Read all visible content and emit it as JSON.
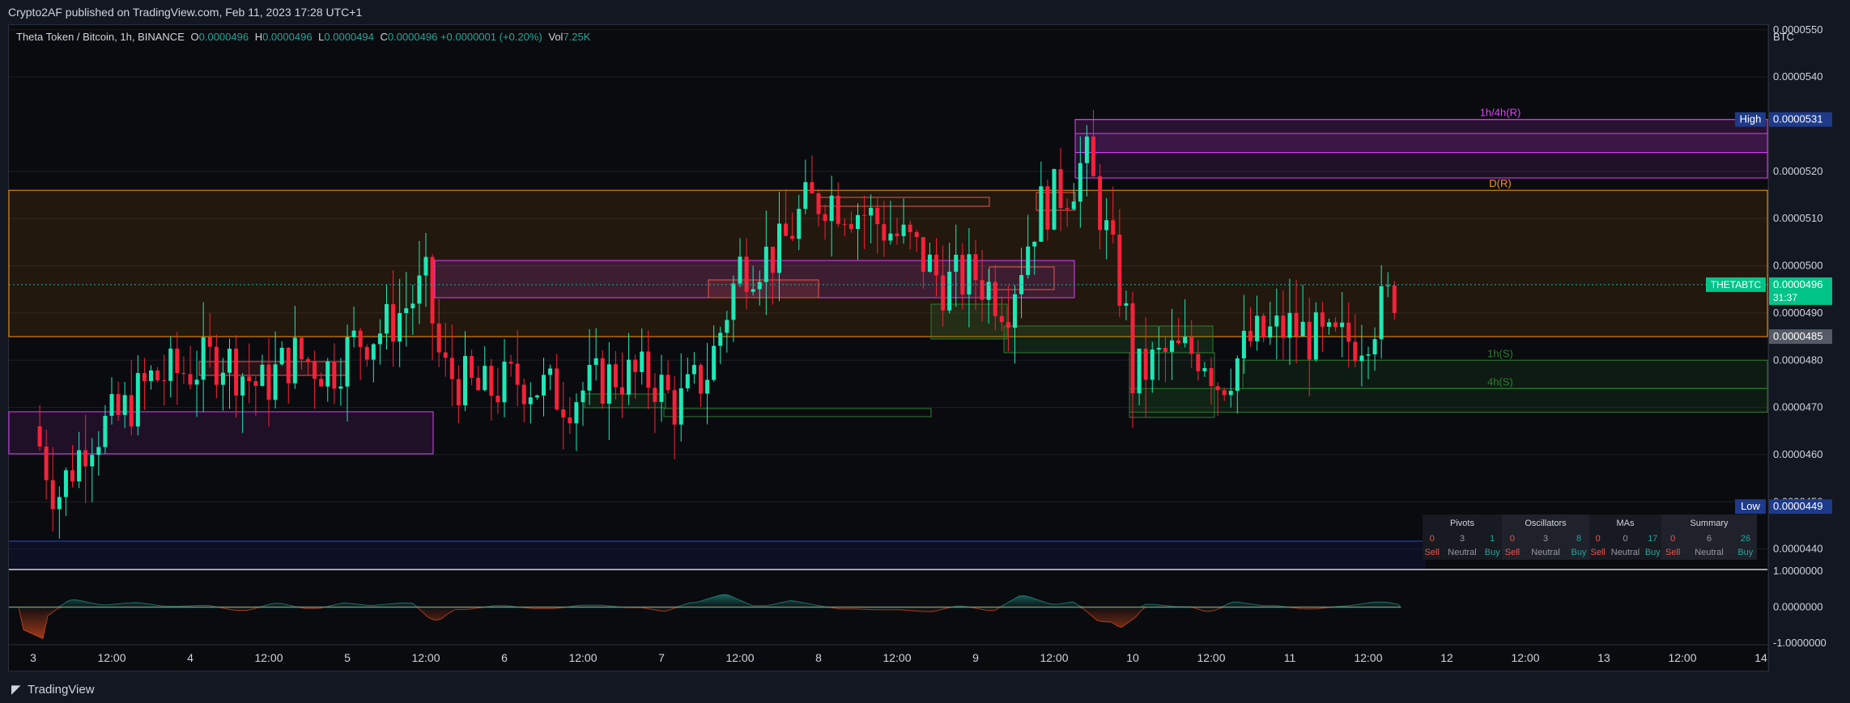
{
  "header": {
    "published": "Crypto2AF published on TradingView.com, Feb 11, 2023 17:28 UTC+1"
  },
  "legend": {
    "symbol": "Theta Token / Bitcoin, 1h, BINANCE",
    "o_label": "O",
    "o_value": "0.0000496",
    "h_label": "H",
    "h_value": "0.0000496",
    "l_label": "L",
    "l_value": "0.0000494",
    "c_label": "C",
    "c_value": "0.0000496",
    "change": "+0.0000001 (+0.20%)",
    "vol_label": "Vol",
    "vol_value": "7.25K"
  },
  "footer": {
    "brand": "TradingView"
  },
  "colors": {
    "up": "#26a69a",
    "down": "#ef5350",
    "bull_body": "#1de9b6",
    "bear_body": "#f7213a",
    "d_zone": "#ff9800",
    "resistance": "#e040fb",
    "support": "#2e7d32"
  },
  "chart_data": {
    "type": "candlestick",
    "currency": "BTC",
    "timeframe": "1h",
    "y_ticks": [
      "0.0000540",
      "0.0000520",
      "0.0000510",
      "0.0000500",
      "0.0000490",
      "0.0000480",
      "0.0000470",
      "0.0000460",
      "0.0000440"
    ],
    "y_ticks_partial": [
      "0.0000550",
      "0.0000450"
    ],
    "ylim": [
      4.36e-05,
      5.51e-05
    ],
    "x_ticks": [
      "3",
      "12:00",
      "4",
      "12:00",
      "5",
      "12:00",
      "6",
      "12:00",
      "7",
      "12:00",
      "8",
      "12:00",
      "9",
      "12:00",
      "10",
      "12:00",
      "11",
      "12:00",
      "12",
      "12:00",
      "13",
      "12:00",
      "14"
    ],
    "last_price": {
      "label": "THETABTC",
      "value": "0.0000496",
      "countdown": "31:37",
      "price": 4.96e-05
    },
    "high_marker": {
      "label": "High",
      "value": "0.0000531",
      "price": 5.31e-05
    },
    "low_marker": {
      "label": "Low",
      "value": "0.0000449",
      "price": 4.49e-05
    },
    "level_marker": {
      "value": "0.0000485",
      "price": 4.85e-05
    },
    "zones": [
      {
        "label": "1h/4h(R)",
        "top": 5.31e-05,
        "bottom": 5.24e-05,
        "color": "#e040fb"
      },
      {
        "label": "D(R)",
        "top": 5.16e-05,
        "bottom": 4.85e-05,
        "color": "#ff9800"
      },
      {
        "label": "1h(S)",
        "top": 4.8e-05,
        "bottom": 4.74e-05,
        "color": "#2e7d32"
      },
      {
        "label": "4h(S)",
        "top": 4.74e-05,
        "bottom": 4.69e-05,
        "color": "#2e7d32"
      }
    ],
    "candle_path": [
      [
        3.0,
        4.66e-05
      ],
      [
        3.15,
        4.51e-05
      ],
      [
        3.35,
        4.64e-05
      ],
      [
        3.55,
        4.68e-05
      ],
      [
        3.75,
        4.76e-05
      ],
      [
        4.0,
        4.78e-05
      ],
      [
        4.2,
        4.81e-05
      ],
      [
        4.45,
        4.74e-05
      ],
      [
        4.65,
        4.81e-05
      ],
      [
        4.9,
        4.78e-05
      ],
      [
        5.05,
        4.84e-05
      ],
      [
        5.25,
        4.87e-05
      ],
      [
        5.5,
        4.96e-05
      ],
      [
        5.6,
        4.78e-05
      ],
      [
        5.85,
        4.73e-05
      ],
      [
        6.1,
        4.76e-05
      ],
      [
        6.4,
        4.72e-05
      ],
      [
        6.7,
        4.77e-05
      ],
      [
        6.95,
        4.76e-05
      ],
      [
        7.1,
        4.7e-05
      ],
      [
        7.3,
        4.78e-05
      ],
      [
        7.5,
        5e-05
      ],
      [
        7.75,
        5.03e-05
      ],
      [
        7.9,
        5.12e-05
      ],
      [
        8.05,
        5.15e-05
      ],
      [
        8.3,
        5.11e-05
      ],
      [
        8.6,
        5.04e-05
      ],
      [
        8.8,
        4.96e-05
      ],
      [
        9.0,
        4.98e-05
      ],
      [
        9.2,
        4.92e-05
      ],
      [
        9.4,
        5.12e-05
      ],
      [
        9.6,
        5.17e-05
      ],
      [
        9.7,
        5.23e-05
      ],
      [
        9.8,
        5.11e-05
      ],
      [
        9.95,
        4.91e-05
      ],
      [
        10.0,
        4.76e-05
      ],
      [
        10.2,
        4.81e-05
      ],
      [
        10.45,
        4.82e-05
      ],
      [
        10.55,
        4.75e-05
      ],
      [
        10.75,
        4.84e-05
      ],
      [
        11.0,
        4.87e-05
      ],
      [
        11.25,
        4.83e-05
      ],
      [
        11.45,
        4.85e-05
      ],
      [
        11.7,
        4.96e-05
      ]
    ],
    "indicator": {
      "ylim": [
        -1.0,
        1.0
      ],
      "y_ticks": [
        "1.0000000",
        "0.0000000"
      ],
      "y_ticks_partial": [
        "-1.0000000"
      ]
    },
    "technicals": {
      "groups": [
        {
          "name": "Pivots",
          "sell": 0,
          "neutral": 3,
          "buy": 1
        },
        {
          "name": "Oscillators",
          "sell": 0,
          "neutral": 3,
          "buy": 8
        },
        {
          "name": "MAs",
          "sell": 0,
          "neutral": 0,
          "buy": 17
        },
        {
          "name": "Summary",
          "sell": 0,
          "neutral": 6,
          "buy": 26
        }
      ],
      "sell_label": "Sell",
      "neutral_label": "Neutral",
      "buy_label": "Buy"
    }
  }
}
